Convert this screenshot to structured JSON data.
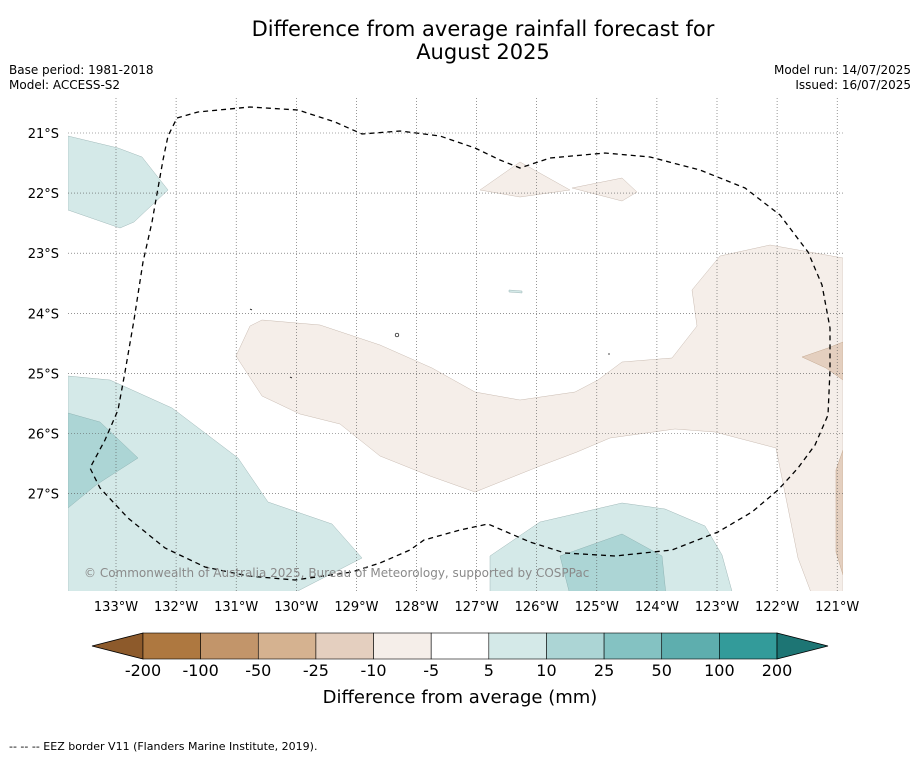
{
  "title_line1": "Difference from average rainfall forecast for",
  "title_line2": "August 2025",
  "base_period": "Base period: 1981-2018",
  "model": "Model: ACCESS-S2",
  "model_run": "Model run: 14/07/2025",
  "issued": "Issued: 16/07/2025",
  "copyright": "© Commonwealth of Australia 2025, Bureau of Meteorology, supported by COSPPac",
  "map": {
    "lon_labels": [
      "133°W",
      "132°W",
      "131°W",
      "130°W",
      "129°W",
      "128°W",
      "127°W",
      "126°W",
      "125°W",
      "124°W",
      "123°W",
      "122°W",
      "121°W"
    ],
    "lat_labels": [
      "21°S",
      "22°S",
      "23°S",
      "24°S",
      "25°S",
      "26°S",
      "27°S"
    ]
  },
  "legend": {
    "title": "Difference from average (mm)",
    "tick_labels": [
      "-200",
      "-100",
      "-50",
      "-25",
      "-10",
      "-5",
      "5",
      "10",
      "25",
      "50",
      "100",
      "200"
    ],
    "colors": [
      "#8d5a2b",
      "#ae7840",
      "#c2956a",
      "#d5b290",
      "#e4cfbf",
      "#f5eee9",
      "#ffffff",
      "#d4e9e8",
      "#acd5d5",
      "#84c2c2",
      "#5eaeae",
      "#339b9a",
      "#1d7574"
    ]
  },
  "footnote": "--  --  -- EEZ border V11 (Flanders Marine Institute, 2019)."
}
